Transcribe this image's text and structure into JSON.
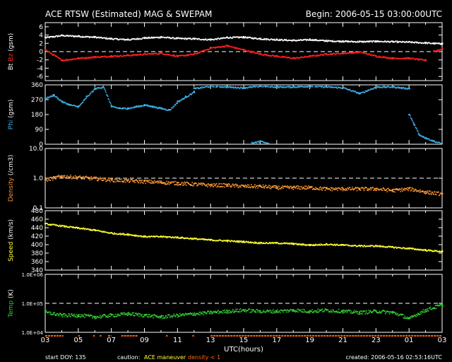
{
  "header": {
    "title": "ACE RTSW (Estimated) MAG & SWEPAM",
    "begin": "Begin: 2006-05-15 03:00:00UTC"
  },
  "footer": {
    "start_doy": "start DOY: 135",
    "caution_label": "caution:",
    "maneuver_label": "ACE maneuver",
    "density_label": "density < 1",
    "created": "created: 2006-05-16 02:53:16UTC"
  },
  "colors": {
    "background": "#000000",
    "frame": "#ffffff",
    "bt": "#ffffff",
    "bz": "#ff2020",
    "phi": "#3fb0e6",
    "density": "#ff9933",
    "speed": "#ffff33",
    "temp": "#33cc33",
    "maneuver": "#ffff33",
    "density_flag": "#ff6600"
  },
  "chart_data": [
    {
      "type": "scatter",
      "panel": "mag",
      "ylabel_parts": [
        "Bt",
        "Bz",
        "(gsm)"
      ],
      "yticks": [
        6,
        4,
        2,
        0,
        -2,
        -4,
        -6
      ],
      "ytick_labels": [
        "6",
        "4",
        "2",
        "0",
        "-2",
        "-4",
        "-6"
      ],
      "ylim": [
        -7,
        7
      ],
      "scale": "linear",
      "dashed_reference": 0,
      "x_hours": [
        0,
        1,
        2,
        3,
        4,
        5,
        6,
        7,
        8,
        9,
        10,
        11,
        12,
        13,
        14,
        15,
        16,
        17,
        18,
        19,
        20,
        21,
        22,
        23,
        24
      ],
      "series": [
        {
          "name": "Bt",
          "color_key": "bt",
          "x_hours": [
            0,
            1,
            2,
            3,
            4,
            5,
            6,
            7,
            8,
            9,
            10,
            11,
            12,
            13,
            14,
            15,
            16,
            17,
            18,
            19,
            20,
            21,
            22,
            23,
            24
          ],
          "values": [
            3.5,
            4.0,
            3.8,
            3.6,
            3.2,
            3.0,
            3.4,
            3.6,
            3.3,
            3.2,
            3.0,
            3.5,
            3.6,
            3.2,
            3.0,
            2.8,
            3.0,
            2.7,
            2.6,
            2.5,
            2.6,
            2.5,
            2.4,
            2.2,
            2.0
          ]
        },
        {
          "name": "Bz",
          "color_key": "bz",
          "x_hours": [
            0,
            1,
            2,
            3,
            4,
            5,
            6,
            7,
            8,
            9,
            10,
            11,
            12,
            13,
            14,
            15,
            16,
            17,
            18,
            19,
            20,
            21,
            22,
            23
          ],
          "values": [
            0.5,
            -2.0,
            -1.5,
            -1.2,
            -1.0,
            -0.8,
            -0.5,
            -0.3,
            -1.0,
            -0.5,
            1.0,
            1.5,
            0.5,
            -0.5,
            -1.0,
            -1.5,
            -1.0,
            -0.5,
            -0.3,
            0.0,
            -1.0,
            -1.5,
            -1.5,
            -2.0
          ]
        },
        {
          "name": "Bz",
          "color_key": "bz",
          "x_hours": [
            23.5,
            24.0
          ],
          "values": [
            0.2,
            0.8
          ]
        }
      ]
    },
    {
      "type": "scatter",
      "panel": "phi",
      "ylabel_parts": [
        "Phi",
        "(gsm)"
      ],
      "yticks": [
        360,
        270,
        180,
        90,
        0
      ],
      "ytick_labels": [
        "360",
        "270",
        "180",
        "90",
        "0"
      ],
      "ylim": [
        0,
        360
      ],
      "scale": "linear",
      "x_hours": [
        0,
        1,
        2,
        3,
        4,
        5,
        6,
        7,
        8,
        9,
        10,
        11,
        12,
        13,
        14,
        15,
        16,
        17,
        18,
        19,
        20,
        21,
        22,
        23,
        24
      ],
      "series": [
        {
          "name": "Phi",
          "color_key": "phi",
          "x_hours": [
            0,
            0.5,
            1,
            1.5,
            2,
            2.5,
            3,
            3.5,
            4,
            4.5,
            5,
            5.5,
            6,
            6.5,
            7,
            7.5,
            8,
            8.5,
            9
          ],
          "values": [
            280,
            300,
            260,
            240,
            230,
            290,
            340,
            350,
            230,
            220,
            220,
            230,
            240,
            230,
            220,
            210,
            260,
            290,
            320
          ]
        },
        {
          "name": "Phi",
          "color_key": "phi",
          "x_hours": [
            9,
            10,
            11,
            12,
            13,
            14,
            15,
            16,
            17,
            18,
            19,
            20,
            21,
            22
          ],
          "values": [
            340,
            355,
            350,
            345,
            355,
            350,
            350,
            355,
            350,
            345,
            310,
            350,
            350,
            340
          ]
        },
        {
          "name": "Phi",
          "color_key": "phi",
          "x_hours": [
            12.5,
            13,
            13.5
          ],
          "values": [
            10,
            20,
            5
          ]
        },
        {
          "name": "Phi",
          "color_key": "phi",
          "x_hours": [
            22,
            22.3,
            22.6,
            23,
            23.5,
            24
          ],
          "values": [
            180,
            120,
            60,
            40,
            20,
            5
          ]
        }
      ]
    },
    {
      "type": "scatter",
      "panel": "density",
      "ylabel_parts": [
        "Density",
        "(/cm3)"
      ],
      "yticks": [
        10,
        1,
        0.1
      ],
      "ytick_labels": [
        "10.0",
        "1.0",
        "0.1"
      ],
      "ylim": [
        0.1,
        10
      ],
      "scale": "log",
      "dashed_reference": 1,
      "x_hours": [
        0,
        1,
        2,
        3,
        4,
        5,
        6,
        7,
        8,
        9,
        10,
        11,
        12,
        13,
        14,
        15,
        16,
        17,
        18,
        19,
        20,
        21,
        22,
        23,
        24
      ],
      "series": [
        {
          "name": "Density",
          "color_key": "density",
          "x_hours": [
            0,
            1,
            2,
            3,
            4,
            5,
            6,
            7,
            8,
            9,
            10,
            11,
            12,
            13,
            14,
            15,
            16,
            17,
            18,
            19,
            20,
            21,
            22,
            23,
            24
          ],
          "values": [
            0.9,
            1.2,
            1.1,
            1.0,
            0.9,
            0.85,
            0.8,
            0.75,
            0.7,
            0.65,
            0.6,
            0.6,
            0.55,
            0.55,
            0.5,
            0.5,
            0.5,
            0.45,
            0.45,
            0.45,
            0.45,
            0.4,
            0.45,
            0.35,
            0.3
          ]
        }
      ]
    },
    {
      "type": "scatter",
      "panel": "speed",
      "ylabel_parts": [
        "Speed",
        "(km/s)"
      ],
      "yticks": [
        480,
        460,
        440,
        420,
        400,
        380,
        360,
        340
      ],
      "ytick_labels": [
        "480",
        "460",
        "440",
        "420",
        "400",
        "380",
        "360",
        "340"
      ],
      "ylim": [
        340,
        480
      ],
      "scale": "linear",
      "x_hours": [
        0,
        1,
        2,
        3,
        4,
        5,
        6,
        7,
        8,
        9,
        10,
        11,
        12,
        13,
        14,
        15,
        16,
        17,
        18,
        19,
        20,
        21,
        22,
        23,
        24
      ],
      "series": [
        {
          "name": "Speed",
          "color_key": "speed",
          "x_hours": [
            0,
            1,
            2,
            3,
            4,
            5,
            6,
            7,
            8,
            9,
            10,
            11,
            12,
            13,
            14,
            15,
            16,
            17,
            18,
            19,
            20,
            21,
            22,
            23,
            24
          ],
          "values": [
            450,
            445,
            440,
            435,
            428,
            425,
            420,
            420,
            418,
            415,
            412,
            410,
            408,
            405,
            405,
            403,
            400,
            402,
            400,
            398,
            398,
            395,
            392,
            388,
            385
          ]
        }
      ]
    },
    {
      "type": "scatter",
      "panel": "temp",
      "ylabel_parts": [
        "Temp",
        "(K)"
      ],
      "yticks": [
        1000000,
        100000,
        10000
      ],
      "ytick_labels": [
        "1.0E+06",
        "1.0E+05",
        "1.0E+04"
      ],
      "ylim": [
        10000,
        1000000
      ],
      "scale": "log",
      "dashed_reference": 100000,
      "x_hours": [
        0,
        1,
        2,
        3,
        4,
        5,
        6,
        7,
        8,
        9,
        10,
        11,
        12,
        13,
        14,
        15,
        16,
        17,
        18,
        19,
        20,
        21,
        22,
        23,
        24
      ],
      "series": [
        {
          "name": "Temp",
          "color_key": "temp",
          "x_hours": [
            0,
            1,
            2,
            3,
            4,
            5,
            6,
            7,
            8,
            9,
            10,
            11,
            12,
            13,
            14,
            15,
            16,
            17,
            18,
            19,
            20,
            21,
            22,
            23,
            24
          ],
          "values": [
            50000,
            40000,
            40000,
            35000,
            40000,
            45000,
            40000,
            35000,
            40000,
            45000,
            50000,
            55000,
            60000,
            55000,
            55000,
            60000,
            55000,
            60000,
            55000,
            50000,
            55000,
            50000,
            30000,
            60000,
            90000
          ]
        }
      ]
    }
  ],
  "x_axis": {
    "label": "UTC(hours)",
    "ticks": [
      0,
      2,
      4,
      6,
      8,
      10,
      12,
      14,
      16,
      18,
      20,
      22,
      24
    ],
    "tick_labels": [
      "03",
      "05",
      "07",
      "09",
      "11",
      "13",
      "15",
      "17",
      "19",
      "21",
      "23",
      "01",
      "03"
    ],
    "range": [
      0,
      24
    ]
  }
}
